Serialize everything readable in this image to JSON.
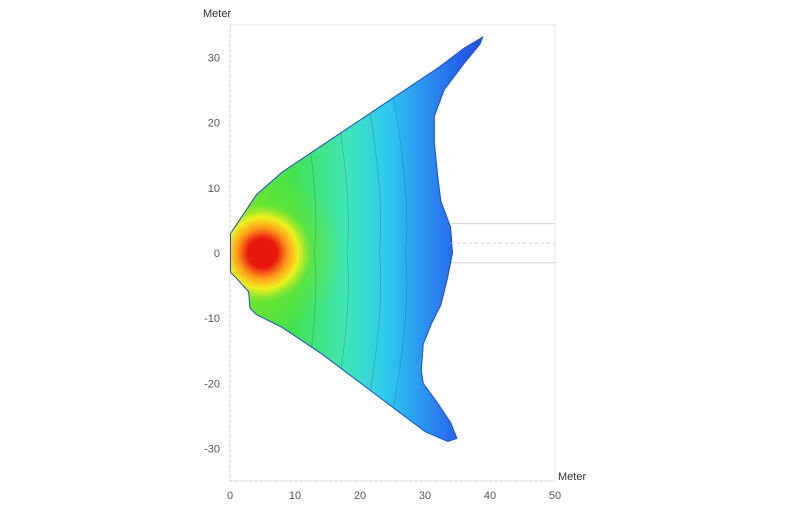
{
  "chart_data": {
    "type": "heatmap",
    "subtype": "filled-contour",
    "title": "",
    "xlabel": "Meter",
    "ylabel": "Meter",
    "xlim": [
      0,
      50
    ],
    "ylim": [
      -35,
      35
    ],
    "xticks": [
      0,
      10,
      20,
      30,
      40,
      50
    ],
    "yticks": [
      30,
      20,
      10,
      0,
      -10,
      -20,
      -30
    ],
    "grid": false,
    "peak": {
      "x": 5,
      "y": 0
    },
    "outline": [
      [
        0,
        3
      ],
      [
        2,
        6
      ],
      [
        4,
        9
      ],
      [
        8,
        12.5
      ],
      [
        14,
        16.5
      ],
      [
        20,
        20.5
      ],
      [
        26,
        24.5
      ],
      [
        32,
        28.5
      ],
      [
        36,
        31.5
      ],
      [
        39,
        33.3
      ],
      [
        38.5,
        32
      ],
      [
        36,
        29
      ],
      [
        33,
        25
      ],
      [
        31.5,
        21
      ],
      [
        31.5,
        17
      ],
      [
        32,
        12
      ],
      [
        32.5,
        8
      ],
      [
        34,
        4
      ],
      [
        34.3,
        0
      ],
      [
        33.5,
        -4
      ],
      [
        32.5,
        -8
      ],
      [
        31,
        -11
      ],
      [
        29.8,
        -14
      ],
      [
        29.5,
        -18
      ],
      [
        29.8,
        -20
      ],
      [
        32,
        -23
      ],
      [
        34,
        -26
      ],
      [
        35,
        -28.5
      ],
      [
        33.5,
        -29
      ],
      [
        30,
        -27.5
      ],
      [
        26,
        -24.5
      ],
      [
        20,
        -20
      ],
      [
        14,
        -15.5
      ],
      [
        8,
        -11.5
      ],
      [
        4,
        -9.5
      ],
      [
        3,
        -8.5
      ],
      [
        2.8,
        -6
      ],
      [
        1,
        -4
      ],
      [
        0,
        -3
      ]
    ],
    "colorscale": [
      "#e8170e",
      "#ff9d1a",
      "#f6f21c",
      "#6fe42a",
      "#43e24f",
      "#3fe6b3",
      "#2ec8f0",
      "#2a8cf0",
      "#2563e8",
      "#1f4fd8"
    ],
    "reference_lines": [
      {
        "y": 4.5,
        "x_from": 34,
        "x_to": 50,
        "style": "solid"
      },
      {
        "y": 1.5,
        "x_from": 34,
        "x_to": 50,
        "style": "dashed"
      },
      {
        "y": -1.5,
        "x_from": 34,
        "x_to": 50,
        "style": "solid"
      }
    ]
  }
}
